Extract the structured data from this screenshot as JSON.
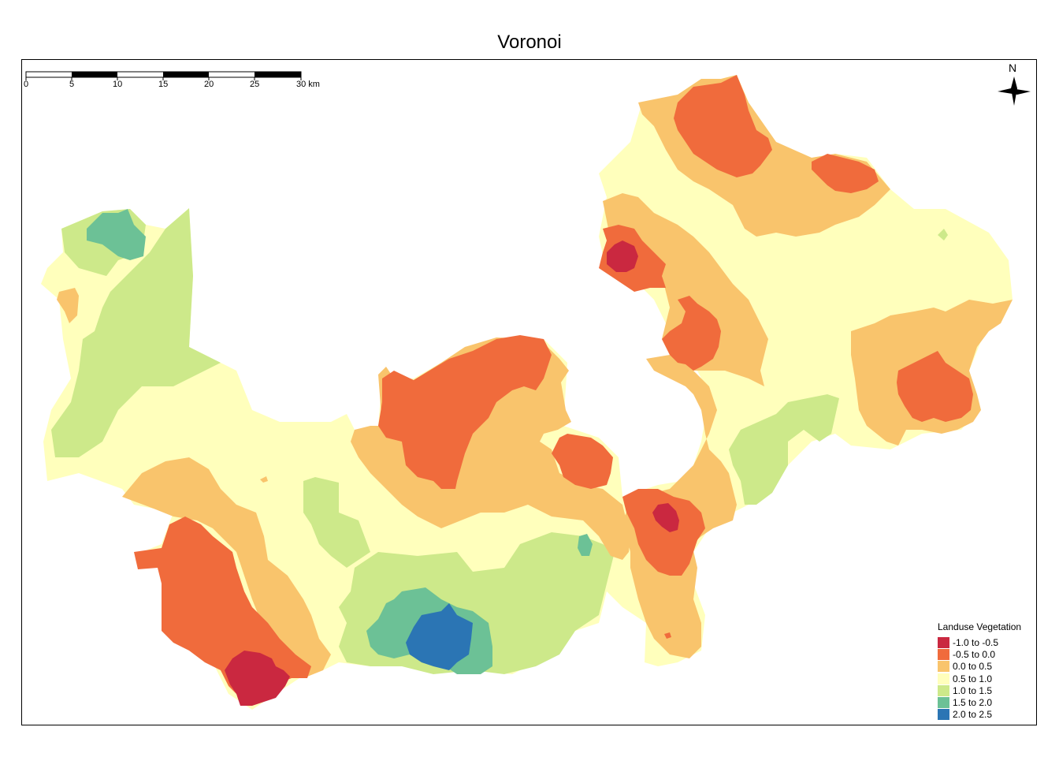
{
  "map": {
    "title": "Voronoi",
    "scale_bar": {
      "ticks": [
        "0",
        "5",
        "10",
        "15",
        "20",
        "25",
        "30 km"
      ]
    },
    "north_arrow": {
      "label": "N",
      "icon": "north-arrow-icon"
    },
    "legend": {
      "title": "Landuse Vegetation",
      "classes": [
        {
          "label": "-1.0 to -0.5",
          "color": "#ca2840"
        },
        {
          "label": "-0.5 to 0.0",
          "color": "#f06b3c"
        },
        {
          "label": "0.0 to 0.5",
          "color": "#f9c46c"
        },
        {
          "label": "0.5 to 1.0",
          "color": "#ffffbc"
        },
        {
          "label": "1.0 to 1.5",
          "color": "#cde98a"
        },
        {
          "label": "1.5 to 2.0",
          "color": "#6cc196"
        },
        {
          "label": "2.0 to 2.5",
          "color": "#2b75b4"
        }
      ]
    }
  }
}
